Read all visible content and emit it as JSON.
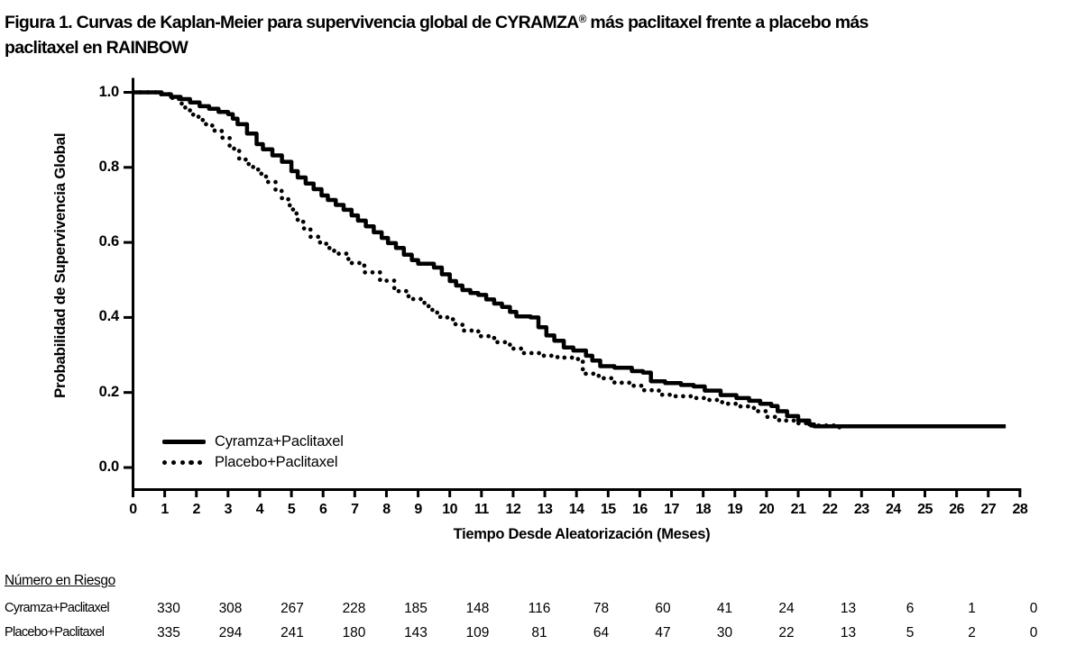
{
  "title": {
    "line1_pre": "Figura 1. Curvas de Kaplan-Meier para supervivencia global de CYRAMZA",
    "line1_sup": "®",
    "line1_post": " más paclitaxel frente a placebo más",
    "line2": "paclitaxel en RAINBOW"
  },
  "chart_data": {
    "type": "line",
    "subtype": "kaplan-meier-step",
    "title": "Figura 1. Curvas de Kaplan-Meier para supervivencia global de CYRAMZA® más paclitaxel frente a placebo más paclitaxel en RAINBOW",
    "xlabel": "Tiempo Desde Aleatorización (Meses)",
    "ylabel": "Probabilidad de Supervivencia Global",
    "xlim": [
      0,
      28
    ],
    "ylim": [
      0.0,
      1.0
    ],
    "grid": false,
    "legend_position": "inside-bottom-left",
    "x_ticks": [
      0,
      1,
      2,
      3,
      4,
      5,
      6,
      7,
      8,
      9,
      10,
      11,
      12,
      13,
      14,
      15,
      16,
      17,
      18,
      19,
      20,
      21,
      22,
      23,
      24,
      25,
      26,
      27,
      28
    ],
    "x_tick_labels": [
      "0",
      "1",
      "2",
      "3",
      "4",
      "5",
      "6",
      "7",
      "8",
      "9",
      "10",
      "11",
      "12",
      "13",
      "14",
      "15",
      "16",
      "17",
      "18",
      "19",
      "20",
      "21",
      "22",
      "23",
      "24",
      "25",
      "26",
      "27",
      "28"
    ],
    "y_ticks": [
      1.0,
      0.8,
      0.6,
      0.4,
      0.2,
      0.0
    ],
    "y_tick_labels": [
      "1.0",
      "0.8",
      "0.6",
      "0.4",
      "0.2",
      "0.0"
    ],
    "series": [
      {
        "name": "Cyramza+Paclitaxel",
        "line": "solid",
        "points": [
          [
            0,
            1.0
          ],
          [
            0.65,
            1.0
          ],
          [
            0.9,
            0.995
          ],
          [
            1.2,
            0.988
          ],
          [
            1.5,
            0.982
          ],
          [
            1.8,
            0.973
          ],
          [
            2.1,
            0.963
          ],
          [
            2.4,
            0.956
          ],
          [
            2.7,
            0.948
          ],
          [
            3.0,
            0.942
          ],
          [
            3.15,
            0.93
          ],
          [
            3.3,
            0.915
          ],
          [
            3.6,
            0.89
          ],
          [
            3.9,
            0.862
          ],
          [
            4.1,
            0.848
          ],
          [
            4.4,
            0.832
          ],
          [
            4.7,
            0.815
          ],
          [
            5.0,
            0.79
          ],
          [
            5.2,
            0.773
          ],
          [
            5.45,
            0.757
          ],
          [
            5.7,
            0.742
          ],
          [
            5.95,
            0.725
          ],
          [
            6.15,
            0.713
          ],
          [
            6.4,
            0.7
          ],
          [
            6.65,
            0.687
          ],
          [
            6.9,
            0.672
          ],
          [
            7.1,
            0.658
          ],
          [
            7.35,
            0.643
          ],
          [
            7.6,
            0.627
          ],
          [
            7.85,
            0.612
          ],
          [
            8.05,
            0.598
          ],
          [
            8.3,
            0.585
          ],
          [
            8.55,
            0.567
          ],
          [
            8.8,
            0.553
          ],
          [
            9.0,
            0.543
          ],
          [
            9.5,
            0.533
          ],
          [
            9.75,
            0.515
          ],
          [
            10.0,
            0.497
          ],
          [
            10.2,
            0.485
          ],
          [
            10.4,
            0.473
          ],
          [
            10.65,
            0.465
          ],
          [
            10.9,
            0.46
          ],
          [
            11.15,
            0.448
          ],
          [
            11.4,
            0.437
          ],
          [
            11.65,
            0.428
          ],
          [
            11.9,
            0.415
          ],
          [
            12.1,
            0.403
          ],
          [
            12.55,
            0.4
          ],
          [
            12.8,
            0.374
          ],
          [
            13.05,
            0.352
          ],
          [
            13.3,
            0.338
          ],
          [
            13.6,
            0.32
          ],
          [
            13.9,
            0.312
          ],
          [
            14.3,
            0.298
          ],
          [
            14.5,
            0.285
          ],
          [
            14.75,
            0.27
          ],
          [
            15.2,
            0.266
          ],
          [
            15.75,
            0.257
          ],
          [
            16.1,
            0.253
          ],
          [
            16.35,
            0.23
          ],
          [
            16.8,
            0.225
          ],
          [
            17.3,
            0.22
          ],
          [
            17.7,
            0.216
          ],
          [
            18.05,
            0.205
          ],
          [
            18.55,
            0.193
          ],
          [
            19.05,
            0.185
          ],
          [
            19.45,
            0.178
          ],
          [
            19.8,
            0.17
          ],
          [
            20.15,
            0.164
          ],
          [
            20.35,
            0.15
          ],
          [
            20.65,
            0.137
          ],
          [
            21.0,
            0.125
          ],
          [
            21.35,
            0.115
          ],
          [
            21.5,
            0.11
          ],
          [
            27.55,
            0.11
          ]
        ]
      },
      {
        "name": "Placebo+Paclitaxel",
        "line": "dotted",
        "points": [
          [
            0,
            1.0
          ],
          [
            0.8,
            0.995
          ],
          [
            1.2,
            0.985
          ],
          [
            1.45,
            0.97
          ],
          [
            1.65,
            0.952
          ],
          [
            1.9,
            0.935
          ],
          [
            2.2,
            0.915
          ],
          [
            2.5,
            0.898
          ],
          [
            2.8,
            0.879
          ],
          [
            3.05,
            0.85
          ],
          [
            3.35,
            0.821
          ],
          [
            3.65,
            0.801
          ],
          [
            3.95,
            0.783
          ],
          [
            4.2,
            0.761
          ],
          [
            4.5,
            0.737
          ],
          [
            4.7,
            0.718
          ],
          [
            4.9,
            0.699
          ],
          [
            5.05,
            0.677
          ],
          [
            5.2,
            0.655
          ],
          [
            5.4,
            0.635
          ],
          [
            5.6,
            0.615
          ],
          [
            5.85,
            0.6
          ],
          [
            6.1,
            0.585
          ],
          [
            6.35,
            0.57
          ],
          [
            6.8,
            0.545
          ],
          [
            7.3,
            0.52
          ],
          [
            7.8,
            0.498
          ],
          [
            8.25,
            0.47
          ],
          [
            8.7,
            0.449
          ],
          [
            9.2,
            0.43
          ],
          [
            9.45,
            0.413
          ],
          [
            9.7,
            0.4
          ],
          [
            10.1,
            0.382
          ],
          [
            10.4,
            0.365
          ],
          [
            10.9,
            0.35
          ],
          [
            11.4,
            0.334
          ],
          [
            11.9,
            0.317
          ],
          [
            12.3,
            0.305
          ],
          [
            12.9,
            0.298
          ],
          [
            13.4,
            0.293
          ],
          [
            13.9,
            0.289
          ],
          [
            14.2,
            0.25
          ],
          [
            14.7,
            0.238
          ],
          [
            15.2,
            0.226
          ],
          [
            15.7,
            0.218
          ],
          [
            16.1,
            0.206
          ],
          [
            16.6,
            0.194
          ],
          [
            17.1,
            0.19
          ],
          [
            17.7,
            0.185
          ],
          [
            18.1,
            0.18
          ],
          [
            18.6,
            0.17
          ],
          [
            19.1,
            0.163
          ],
          [
            19.6,
            0.15
          ],
          [
            20.0,
            0.135
          ],
          [
            20.4,
            0.125
          ],
          [
            20.9,
            0.118
          ],
          [
            21.3,
            0.112
          ],
          [
            22.3,
            0.105
          ]
        ]
      }
    ]
  },
  "risk_table": {
    "header": "Número en Riesgo",
    "rows": [
      {
        "label": "Cyramza+Paclitaxel",
        "values": [
          330,
          308,
          267,
          228,
          185,
          148,
          116,
          78,
          60,
          41,
          24,
          13,
          6,
          1,
          0
        ]
      },
      {
        "label": "Placebo+Paclitaxel",
        "values": [
          335,
          294,
          241,
          180,
          143,
          109,
          81,
          64,
          47,
          30,
          22,
          13,
          5,
          2,
          0
        ]
      }
    ]
  }
}
